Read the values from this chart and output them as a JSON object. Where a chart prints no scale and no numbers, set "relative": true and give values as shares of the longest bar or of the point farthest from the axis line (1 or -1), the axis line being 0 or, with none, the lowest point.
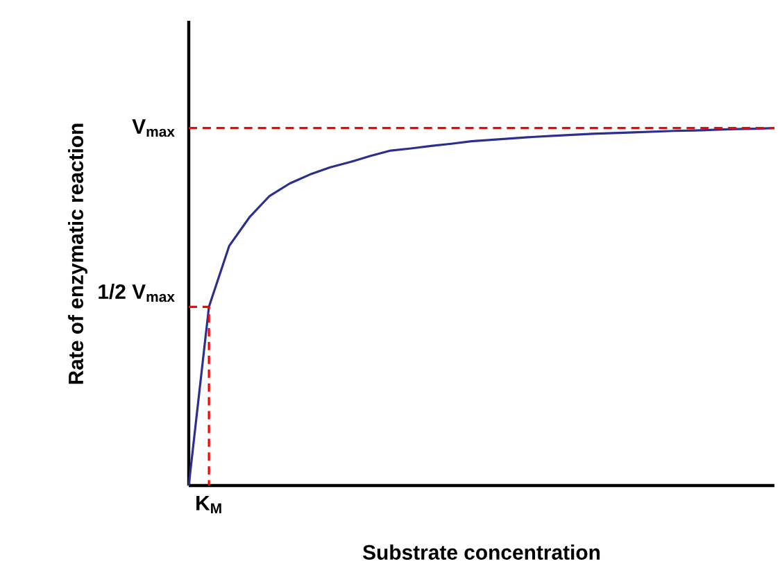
{
  "chart_data": {
    "type": "line",
    "relative": true,
    "xlabel": "Substrate concentration",
    "ylabel": "Rate of enzymatic reaction",
    "categories": [
      null,
      null,
      null,
      null,
      null,
      null,
      null,
      null,
      null,
      null,
      null,
      null,
      null,
      null,
      null,
      null,
      null,
      null,
      null,
      null,
      null,
      null,
      null,
      null,
      null,
      null,
      null,
      null,
      null,
      null
    ],
    "series": [
      {
        "color": "#2b2f8f",
        "line_style": "solid",
        "values": [
          0,
          0.5,
          0.67,
          0.75,
          0.81,
          0.845,
          0.87,
          0.89,
          0.905,
          0.922,
          0.937,
          0.943,
          0.95,
          0.956,
          0.963,
          0.967,
          0.971,
          0.975,
          0.978,
          0.981,
          0.984,
          0.986,
          0.988,
          0.99,
          0.992,
          0.993,
          0.995,
          0.997,
          0.998,
          1.0
        ]
      }
    ],
    "ref_lines": [
      {
        "axis": "y",
        "value": 1.0,
        "label": "V$_{max}$",
        "color": "#ff0000",
        "line_style": "dashed"
      },
      {
        "axis": "y",
        "value": 0.5,
        "label": "1/2 V$_{max}$",
        "color": "#ff0000",
        "line_style": "dashed"
      }
    ],
    "annotations": [
      "K$_{M}$"
    ]
  }
}
